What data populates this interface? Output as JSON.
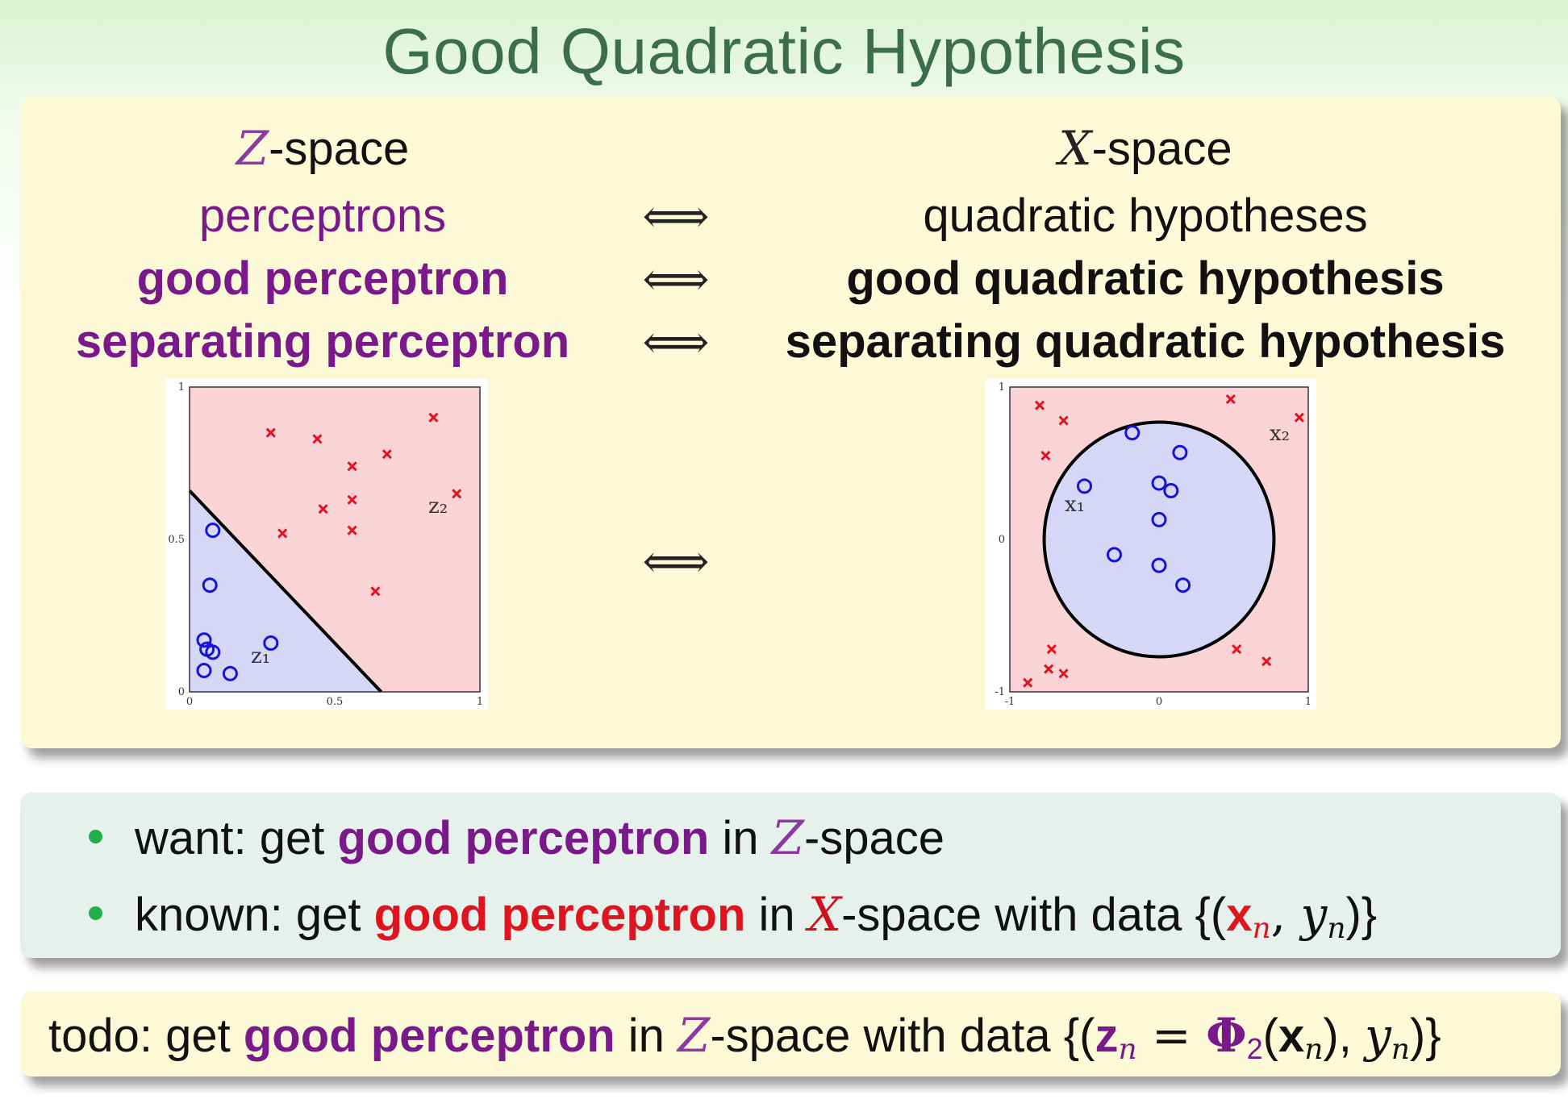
{
  "title": "Good Quadratic Hypothesis",
  "left_column": {
    "header_symbol": "Z",
    "header_suffix": "-space",
    "row1": "perceptrons",
    "row2": "good perceptron",
    "row3": "separating perceptron"
  },
  "right_column": {
    "header_symbol": "X",
    "header_suffix": "-space",
    "row1": "quadratic hypotheses",
    "row2": "good quadratic hypothesis",
    "row3": "separating quadratic hypothesis"
  },
  "equiv_symbol": "⟺",
  "bullets": [
    {
      "t1": "want: get ",
      "t2": "good perceptron",
      "t3": " in ",
      "sym": "Z",
      "t4": "-space"
    },
    {
      "t1": "known: get ",
      "t2": "good perceptron",
      "t3": " in ",
      "sym": "X",
      "t4": "-space with data {(",
      "t5": "x",
      "t6": "n",
      "t7": ", ",
      "t8": "y",
      "t9": "n",
      "t10": ")}"
    }
  ],
  "todo": {
    "t1": "todo: get ",
    "t2": "good perceptron",
    "t3": " in ",
    "sym": "Z",
    "t4": "-space with data {(",
    "t5": "z",
    "t6": "n",
    "t7": " = ",
    "t8": "Φ",
    "t9": "2",
    "t10": "(",
    "t11": "x",
    "t12": "n",
    "t13": "), ",
    "t14": "y",
    "t15": "n",
    "t16": ")}"
  },
  "chart_data": [
    {
      "type": "scatter",
      "space": "Z",
      "xlim": [
        0,
        1
      ],
      "ylim": [
        0,
        1
      ],
      "xticks": [
        "0",
        "0.5",
        "1"
      ],
      "yticks": [
        "0",
        "0.5",
        "1"
      ],
      "boundary": {
        "kind": "line",
        "points": [
          [
            0,
            0.66
          ],
          [
            0.66,
            0
          ]
        ]
      },
      "region_colors": {
        "positive": "#f9d3d6",
        "negative": "#d6d6f7"
      },
      "axis_labels": {
        "x": "z₁",
        "y": "z₂"
      },
      "series": [
        {
          "name": "x",
          "marker": "x",
          "color": "#e0141e",
          "points": [
            [
              0.28,
              0.85
            ],
            [
              0.44,
              0.83
            ],
            [
              0.56,
              0.74
            ],
            [
              0.68,
              0.78
            ],
            [
              0.84,
              0.9
            ],
            [
              0.56,
              0.63
            ],
            [
              0.46,
              0.6
            ],
            [
              0.32,
              0.52
            ],
            [
              0.56,
              0.53
            ],
            [
              0.92,
              0.65
            ],
            [
              0.64,
              0.33
            ]
          ]
        },
        {
          "name": "o",
          "marker": "o",
          "color": "#1414d6",
          "points": [
            [
              0.08,
              0.53
            ],
            [
              0.07,
              0.35
            ],
            [
              0.05,
              0.17
            ],
            [
              0.06,
              0.14
            ],
            [
              0.08,
              0.13
            ],
            [
              0.05,
              0.07
            ],
            [
              0.14,
              0.06
            ],
            [
              0.28,
              0.16
            ]
          ]
        }
      ]
    },
    {
      "type": "scatter",
      "space": "X",
      "xlim": [
        -1,
        1
      ],
      "ylim": [
        -1,
        1
      ],
      "xticks": [
        "-1",
        "0",
        "1"
      ],
      "yticks": [
        "-1",
        "0",
        "1"
      ],
      "boundary": {
        "kind": "circle",
        "center": [
          0,
          0
        ],
        "radius": 0.77
      },
      "region_colors": {
        "positive": "#f9d3d6",
        "negative": "#d6d6f7"
      },
      "axis_labels": {
        "x": "x₁",
        "y": "x₂"
      },
      "series": [
        {
          "name": "x",
          "marker": "x",
          "color": "#e0141e",
          "points": [
            [
              -0.8,
              0.88
            ],
            [
              -0.64,
              0.78
            ],
            [
              -0.76,
              0.55
            ],
            [
              0.48,
              0.92
            ],
            [
              0.94,
              0.8
            ],
            [
              -0.72,
              -0.72
            ],
            [
              -0.74,
              -0.85
            ],
            [
              -0.64,
              -0.88
            ],
            [
              -0.88,
              -0.94
            ],
            [
              0.52,
              -0.72
            ],
            [
              0.72,
              -0.8
            ]
          ]
        },
        {
          "name": "o",
          "marker": "o",
          "color": "#1414d6",
          "points": [
            [
              -0.18,
              0.7
            ],
            [
              0.14,
              0.57
            ],
            [
              -0.5,
              0.35
            ],
            [
              0.0,
              0.37
            ],
            [
              0.08,
              0.32
            ],
            [
              0.0,
              0.13
            ],
            [
              -0.3,
              -0.1
            ],
            [
              0.0,
              -0.17
            ],
            [
              0.16,
              -0.3
            ]
          ]
        }
      ]
    }
  ]
}
